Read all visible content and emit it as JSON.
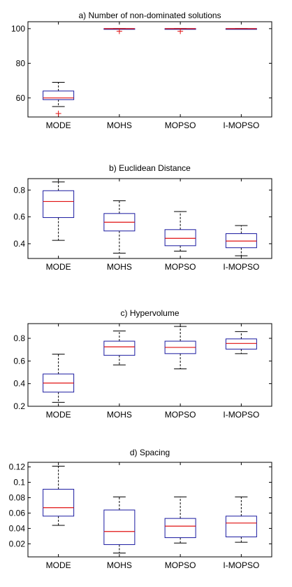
{
  "chart_data": [
    {
      "type": "box",
      "title": "a) Number of non-dominated solutions",
      "categories": [
        "MODE",
        "MOHS",
        "MOPSO",
        "I-MOPSO"
      ],
      "ylim": [
        49,
        104
      ],
      "yticks": [
        60,
        80,
        100
      ],
      "boxes": [
        {
          "whisker_low": 55,
          "q1": 59,
          "median": 60,
          "q3": 64,
          "whisker_high": 69,
          "outliers": [
            51
          ]
        },
        {
          "whisker_low": 100,
          "q1": 100,
          "median": 100,
          "q3": 100,
          "whisker_high": 100,
          "outliers": [
            98.5
          ]
        },
        {
          "whisker_low": 100,
          "q1": 100,
          "median": 100,
          "q3": 100,
          "whisker_high": 100,
          "outliers": [
            98.5
          ]
        },
        {
          "whisker_low": 100,
          "q1": 100,
          "median": 100,
          "q3": 100,
          "whisker_high": 100,
          "outliers": []
        }
      ]
    },
    {
      "type": "box",
      "title": "b) Euclidean Distance",
      "categories": [
        "MODE",
        "MOHS",
        "MOPSO",
        "I-MOPSO"
      ],
      "ylim": [
        0.29,
        0.885
      ],
      "yticks": [
        0.4,
        0.6,
        0.8
      ],
      "boxes": [
        {
          "whisker_low": 0.425,
          "q1": 0.595,
          "median": 0.715,
          "q3": 0.795,
          "whisker_high": 0.86,
          "outliers": []
        },
        {
          "whisker_low": 0.33,
          "q1": 0.495,
          "median": 0.56,
          "q3": 0.625,
          "whisker_high": 0.72,
          "outliers": []
        },
        {
          "whisker_low": 0.345,
          "q1": 0.385,
          "median": 0.44,
          "q3": 0.505,
          "whisker_high": 0.64,
          "outliers": []
        },
        {
          "whisker_low": 0.31,
          "q1": 0.37,
          "median": 0.42,
          "q3": 0.475,
          "whisker_high": 0.535,
          "outliers": []
        }
      ]
    },
    {
      "type": "box",
      "title": "c) Hypervolume",
      "categories": [
        "MODE",
        "MOHS",
        "MOPSO",
        "I-MOPSO"
      ],
      "ylim": [
        0.2,
        0.93
      ],
      "yticks": [
        0.2,
        0.4,
        0.6,
        0.8
      ],
      "boxes": [
        {
          "whisker_low": 0.235,
          "q1": 0.325,
          "median": 0.405,
          "q3": 0.485,
          "whisker_high": 0.66,
          "outliers": []
        },
        {
          "whisker_low": 0.565,
          "q1": 0.65,
          "median": 0.725,
          "q3": 0.775,
          "whisker_high": 0.865,
          "outliers": []
        },
        {
          "whisker_low": 0.53,
          "q1": 0.665,
          "median": 0.72,
          "q3": 0.775,
          "whisker_high": 0.905,
          "outliers": []
        },
        {
          "whisker_low": 0.665,
          "q1": 0.705,
          "median": 0.755,
          "q3": 0.795,
          "whisker_high": 0.86,
          "outliers": []
        }
      ]
    },
    {
      "type": "box",
      "title": "d) Spacing",
      "categories": [
        "MODE",
        "MOHS",
        "MOPSO",
        "I-MOPSO"
      ],
      "ylim": [
        0.003,
        0.126
      ],
      "yticks": [
        0.02,
        0.04,
        0.06,
        0.08,
        0.1,
        0.12
      ],
      "boxes": [
        {
          "whisker_low": 0.044,
          "q1": 0.056,
          "median": 0.067,
          "q3": 0.091,
          "whisker_high": 0.121,
          "outliers": []
        },
        {
          "whisker_low": 0.008,
          "q1": 0.019,
          "median": 0.036,
          "q3": 0.064,
          "whisker_high": 0.081,
          "outliers": []
        },
        {
          "whisker_low": 0.021,
          "q1": 0.028,
          "median": 0.043,
          "q3": 0.053,
          "whisker_high": 0.081,
          "outliers": []
        },
        {
          "whisker_low": 0.022,
          "q1": 0.029,
          "median": 0.047,
          "q3": 0.056,
          "whisker_high": 0.081,
          "outliers": []
        }
      ]
    }
  ],
  "colors": {
    "box": "#1a1aa0",
    "median": "#e01010",
    "outlier": "#e01010",
    "axis": "#000000"
  }
}
